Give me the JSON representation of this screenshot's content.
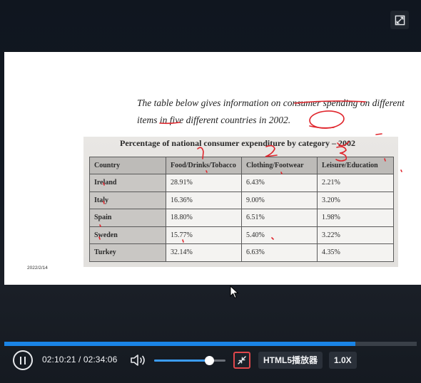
{
  "slide": {
    "intro_text": "The table below gives information on consumer spending on different items in five different countries in 2002.",
    "table_title": "Percentage of national consumer expenditure by category – 2002",
    "columns": [
      "Country",
      "Food/Drinks/Tobacco",
      "Clothing/Footwear",
      "Leisure/Education"
    ],
    "rows": [
      {
        "country": "Ireland",
        "food": "28.91%",
        "clothing": "6.43%",
        "leisure": "2.21%"
      },
      {
        "country": "Italy",
        "food": "16.36%",
        "clothing": "9.00%",
        "leisure": "3.20%"
      },
      {
        "country": "Spain",
        "food": "18.80%",
        "clothing": "6.51%",
        "leisure": "1.98%"
      },
      {
        "country": "Sweden",
        "food": "15.77%",
        "clothing": "5.40%",
        "leisure": "3.22%"
      },
      {
        "country": "Turkey",
        "food": "32.14%",
        "clothing": "6.63%",
        "leisure": "4.35%"
      }
    ],
    "date_stamp": "2022/2/14",
    "annotations": {
      "marks": [
        "1",
        "2",
        "3"
      ],
      "color": "#e0262d"
    }
  },
  "player": {
    "current_time": "02:10:21",
    "separator": "/",
    "total_time": "02:34:06",
    "progress_fraction": 0.851,
    "volume_fraction": 0.77,
    "player_name": "HTML5播放器",
    "speed": "1.0X",
    "accent_color": "#1a84e6",
    "icons": [
      "fullscreen-icon",
      "pause-icon",
      "volume-icon",
      "picture-in-picture-icon",
      "cursor-icon"
    ]
  }
}
